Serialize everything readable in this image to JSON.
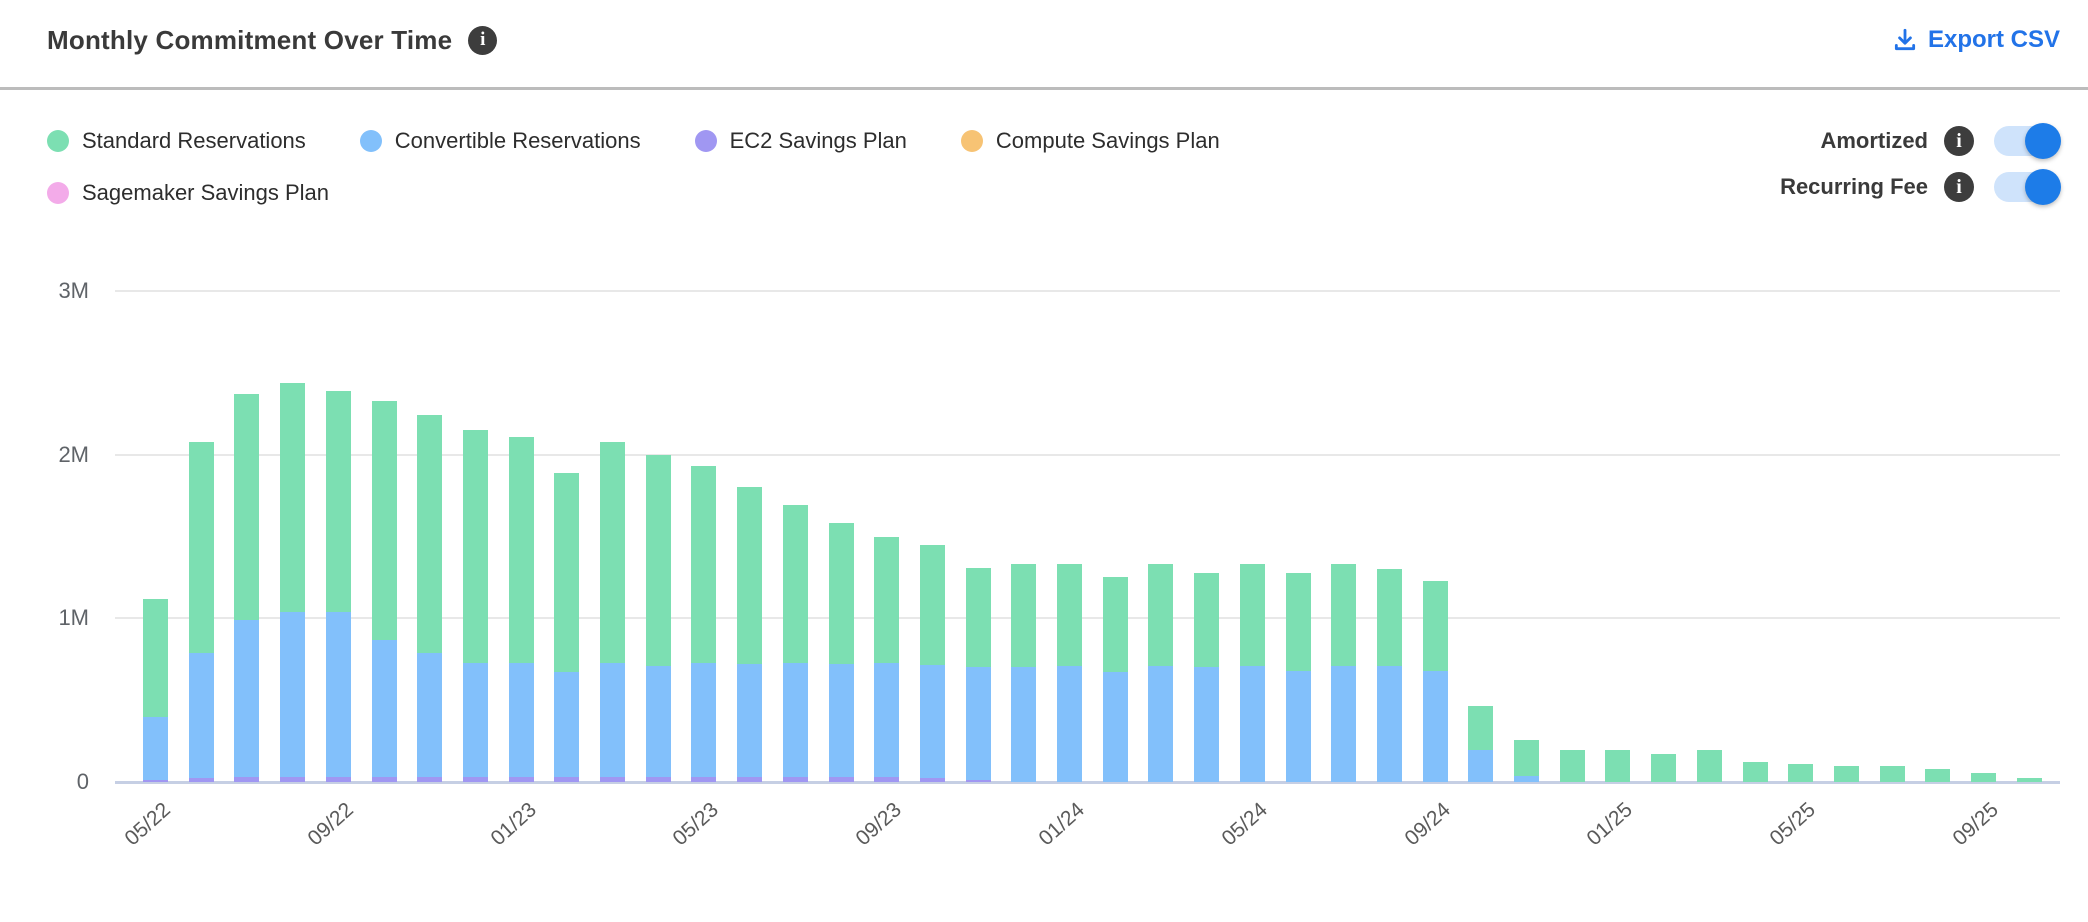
{
  "header": {
    "title": "Monthly Commitment Over Time",
    "info_glyph": "i",
    "export_label": "Export CSV"
  },
  "toggles": [
    {
      "label": "Amortized",
      "state": "on"
    },
    {
      "label": "Recurring Fee",
      "state": "on"
    }
  ],
  "ui_colors": {
    "accent_blue": "#2273e8",
    "toggle_track": "#cfe3fb",
    "toggle_knob": "#1d7ce8",
    "divider": "#bcbcbc",
    "gridline": "#e8e8e8",
    "zero_line": "#c6cfe4"
  },
  "chart_data": {
    "type": "bar",
    "subtype": "stacked-vertical",
    "title": "Monthly Commitment Over Time",
    "unit": "millions",
    "ylim": [
      0,
      3
    ],
    "y_tick_labels": [
      "3M",
      "2M",
      "1M",
      "0"
    ],
    "y_tick_values": [
      3,
      2,
      1,
      0
    ],
    "x_tick_every_n_months": 4,
    "x_tick_labels": [
      "05/22",
      "09/22",
      "01/23",
      "05/23",
      "09/23",
      "01/24",
      "05/24",
      "09/24",
      "01/25",
      "05/25",
      "09/25"
    ],
    "grid": "horizontal",
    "legend_position": "top-left",
    "categories": [
      "05/22",
      "06/22",
      "07/22",
      "08/22",
      "09/22",
      "10/22",
      "11/22",
      "12/22",
      "01/23",
      "02/23",
      "03/23",
      "04/23",
      "05/23",
      "06/23",
      "07/23",
      "08/23",
      "09/23",
      "10/23",
      "11/23",
      "12/23",
      "01/24",
      "02/24",
      "03/24",
      "04/24",
      "05/24",
      "06/24",
      "07/24",
      "08/24",
      "09/24",
      "10/24",
      "11/24",
      "12/24",
      "01/25",
      "02/25",
      "03/25",
      "04/25",
      "05/25",
      "06/25",
      "07/25",
      "08/25",
      "09/25",
      "10/25"
    ],
    "series": [
      {
        "name": "Standard Reservations",
        "color": "#7cdfb2",
        "values": [
          0.72,
          1.29,
          1.38,
          1.4,
          1.35,
          1.46,
          1.45,
          1.42,
          1.38,
          1.22,
          1.35,
          1.29,
          1.2,
          1.08,
          0.96,
          0.86,
          0.77,
          0.735,
          0.61,
          0.63,
          0.62,
          0.58,
          0.62,
          0.58,
          0.62,
          0.6,
          0.62,
          0.59,
          0.55,
          0.27,
          0.22,
          0.196,
          0.196,
          0.17,
          0.196,
          0.122,
          0.11,
          0.098,
          0.098,
          0.079,
          0.055,
          0.024
        ]
      },
      {
        "name": "Convertible Reservations",
        "color": "#82c0fb",
        "values": [
          0.39,
          0.765,
          0.96,
          1.01,
          1.01,
          0.84,
          0.76,
          0.7,
          0.7,
          0.64,
          0.7,
          0.68,
          0.7,
          0.69,
          0.7,
          0.69,
          0.7,
          0.69,
          0.69,
          0.7,
          0.71,
          0.67,
          0.71,
          0.7,
          0.71,
          0.68,
          0.71,
          0.71,
          0.68,
          0.196,
          0.037,
          0,
          0,
          0,
          0,
          0,
          0,
          0,
          0,
          0,
          0,
          0
        ]
      },
      {
        "name": "EC2 Savings Plan",
        "color": "#a097f2",
        "values": [
          0.01,
          0.025,
          0.03,
          0.03,
          0.03,
          0.03,
          0.03,
          0.03,
          0.03,
          0.03,
          0.03,
          0.03,
          0.03,
          0.03,
          0.03,
          0.03,
          0.03,
          0.025,
          0.01,
          0,
          0,
          0,
          0,
          0,
          0,
          0,
          0,
          0,
          0,
          0,
          0,
          0,
          0,
          0,
          0,
          0,
          0,
          0,
          0,
          0,
          0,
          0
        ]
      },
      {
        "name": "Compute Savings Plan",
        "color": "#f7c374",
        "values": [
          0,
          0,
          0,
          0,
          0,
          0,
          0,
          0,
          0,
          0,
          0,
          0,
          0,
          0,
          0,
          0,
          0,
          0,
          0,
          0,
          0,
          0,
          0,
          0,
          0,
          0,
          0,
          0,
          0,
          0,
          0,
          0,
          0,
          0,
          0,
          0,
          0,
          0,
          0,
          0,
          0,
          0
        ]
      },
      {
        "name": "Sagemaker Savings Plan",
        "color": "#f3abe9",
        "values": [
          0,
          0,
          0,
          0,
          0,
          0,
          0,
          0,
          0,
          0,
          0,
          0,
          0,
          0,
          0,
          0,
          0,
          0,
          0,
          0,
          0,
          0,
          0,
          0,
          0,
          0,
          0,
          0,
          0,
          0,
          0,
          0,
          0,
          0,
          0,
          0,
          0,
          0,
          0,
          0,
          0,
          0
        ]
      }
    ]
  }
}
